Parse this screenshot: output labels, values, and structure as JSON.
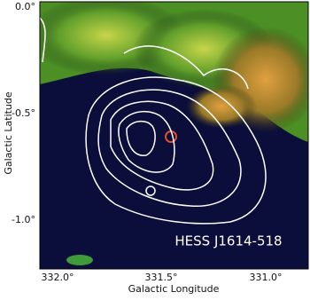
{
  "image": {
    "annotation": "HESS J1614-518"
  },
  "x_axis": {
    "label": "Galactic Longitude",
    "ticks": [
      "332.0°",
      "331.5°",
      "331.0°"
    ]
  },
  "y_axis": {
    "label": "Galactic Latitude",
    "ticks": [
      "0.0°",
      "-0.5°",
      "-1.0°"
    ]
  }
}
